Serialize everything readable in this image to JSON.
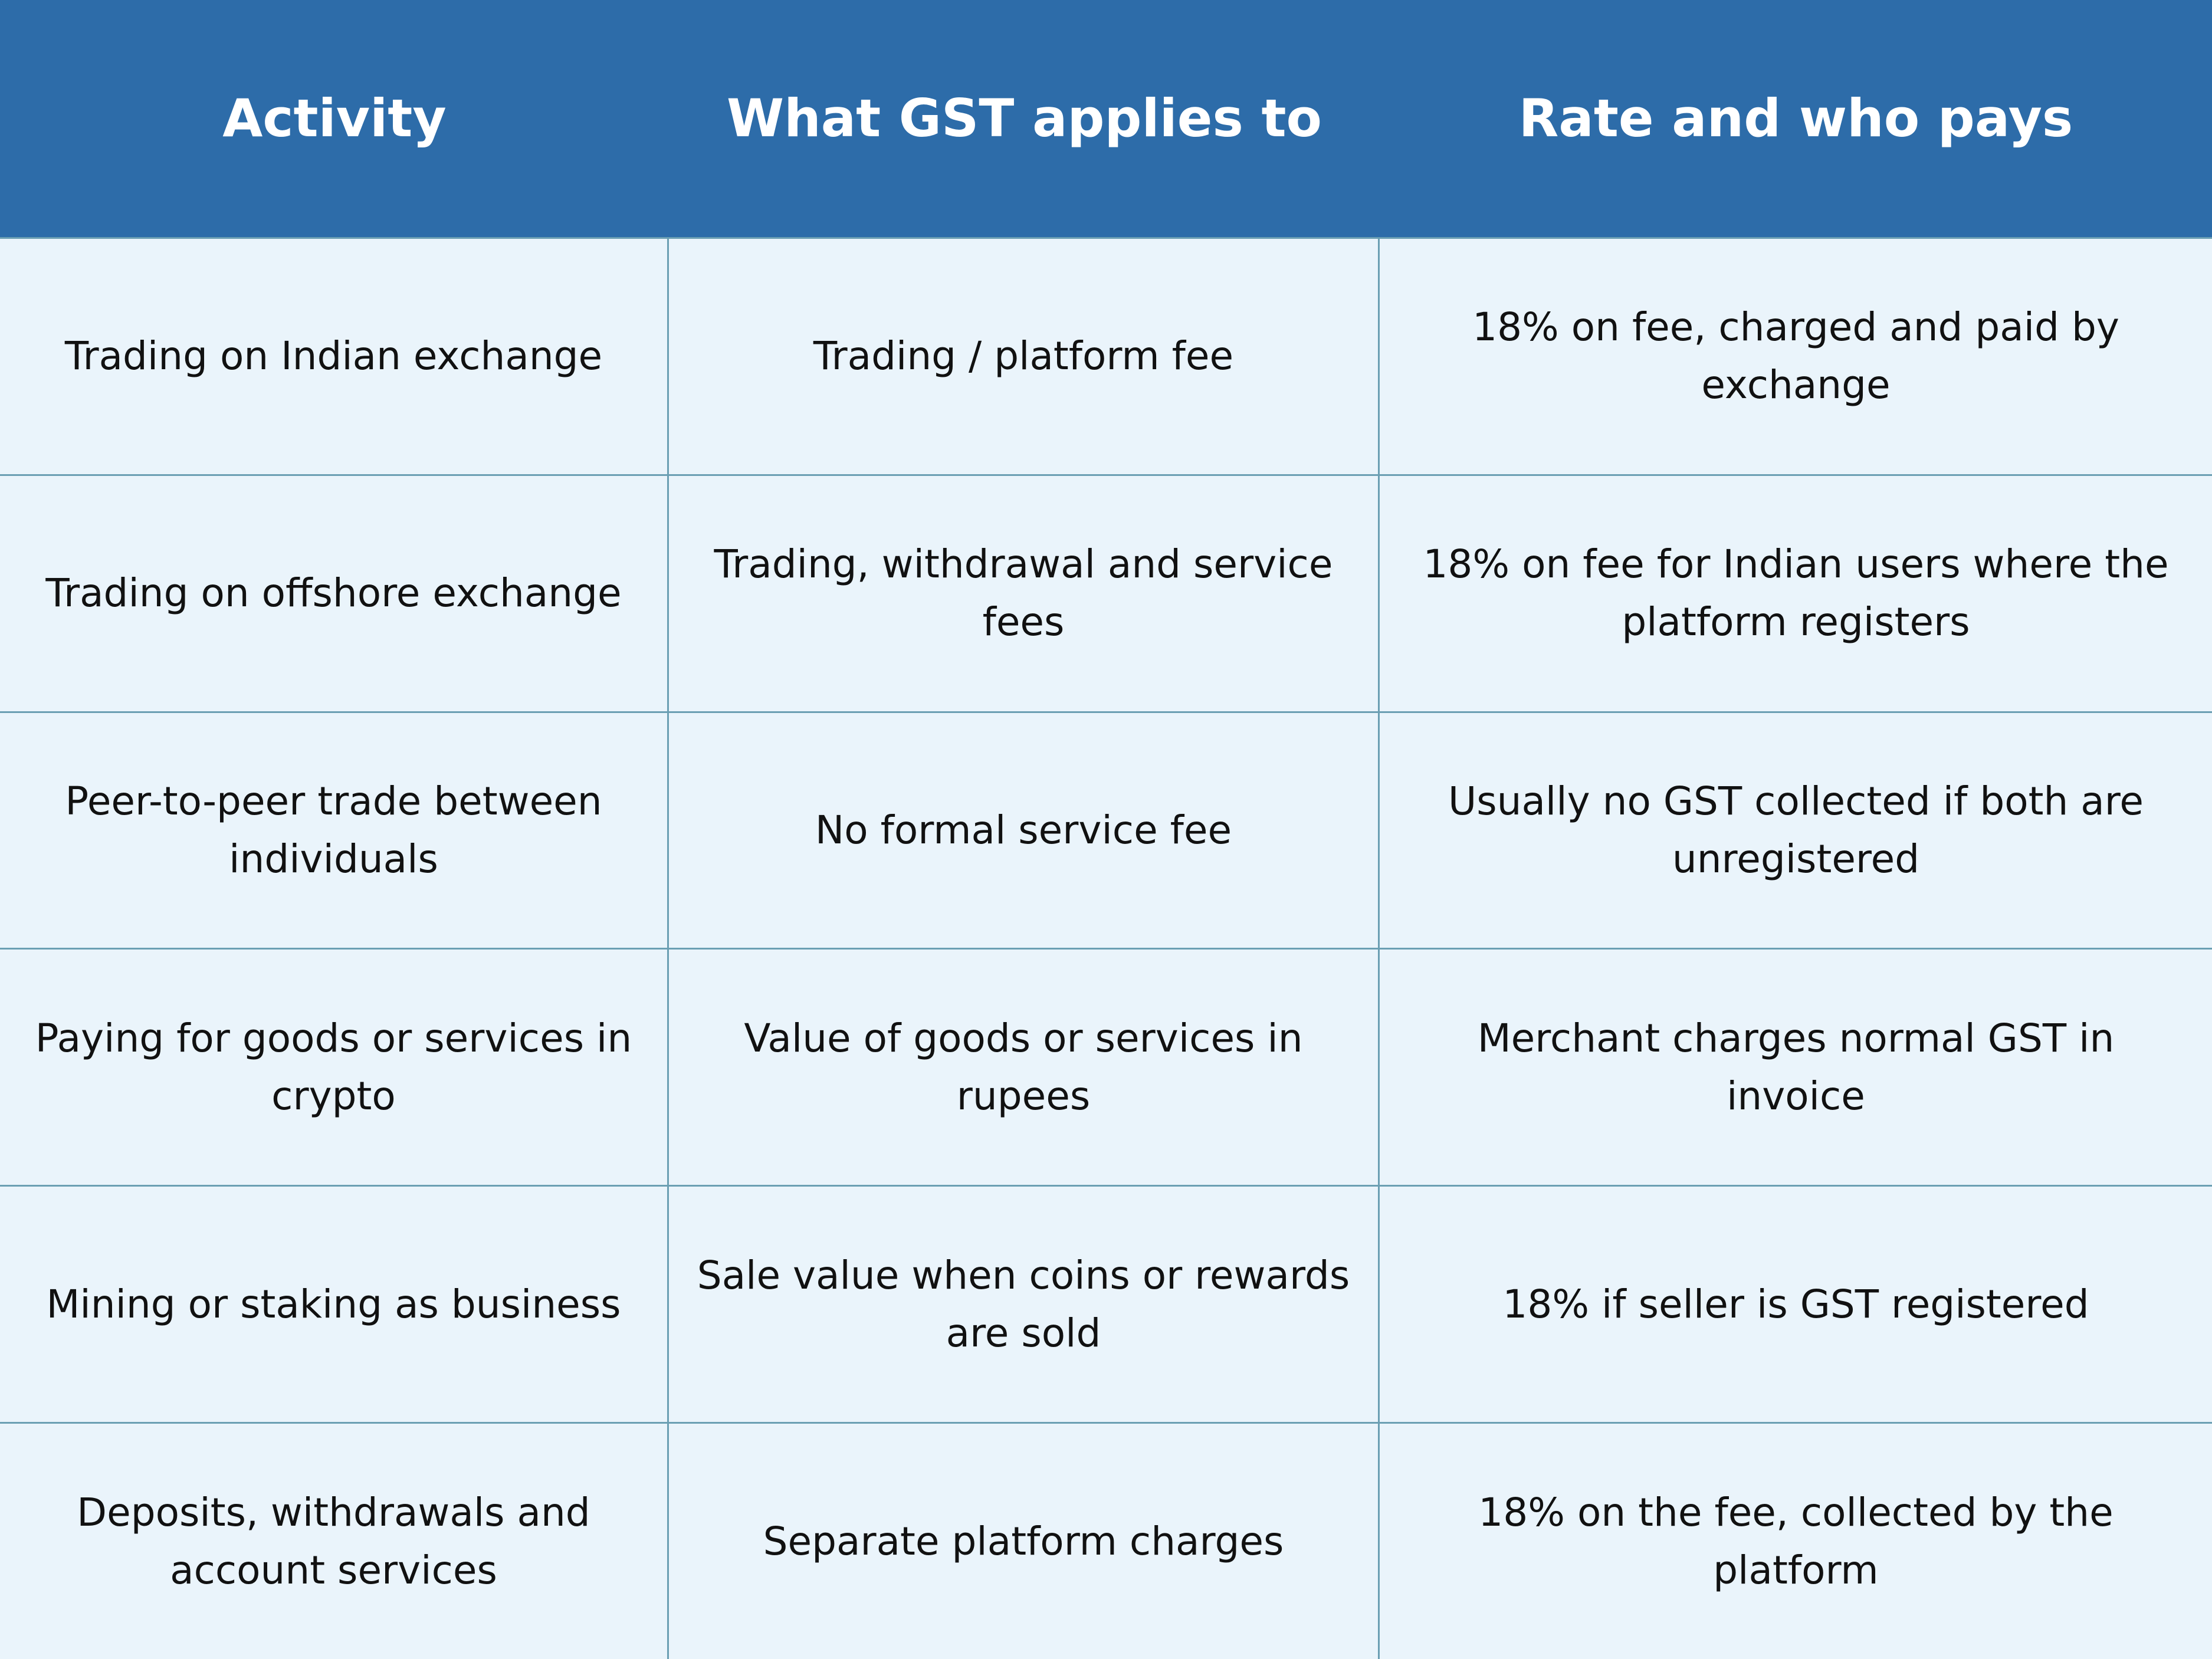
{
  "table": {
    "columns": [
      "Activity",
      "What GST applies to",
      "Rate and who pays"
    ],
    "rows": [
      [
        "Trading on Indian exchange",
        "Trading / platform fee",
        "18% on fee, charged and paid by exchange"
      ],
      [
        "Trading on offshore exchange",
        "Trading, withdrawal and service fees",
        "18% on fee for Indian users where the platform registers"
      ],
      [
        "Peer-to-peer trade between individuals",
        "No formal service fee",
        "Usually no GST collected if both are unregistered"
      ],
      [
        "Paying for goods or services in crypto",
        "Value of goods or services in rupees",
        "Merchant charges normal GST in invoice"
      ],
      [
        "Mining or staking as business",
        "Sale value when coins or rewards are sold",
        "18% if seller is GST registered"
      ],
      [
        "Deposits, withdrawals and account services",
        "Separate platform charges",
        "18% on the fee, collected by the platform"
      ]
    ]
  }
}
